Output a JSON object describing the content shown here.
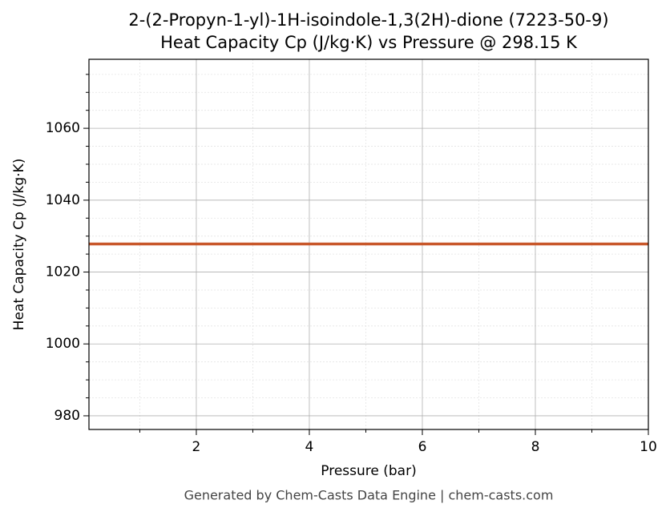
{
  "chart_data": {
    "type": "line",
    "title": "2-(2-Propyn-1-yl)-1H-isoindole-1,3(2H)-dione (7223-50-9)",
    "subtitle": "Heat Capacity Cp (J/kg·K) vs Pressure @ 298.15 K",
    "x_label": "Pressure (bar)",
    "y_label": "Heat Capacity Cp (J/kg·K)",
    "caption": "Generated by Chem-Casts Data Engine | chem-casts.com",
    "x": [
      0.1,
      10
    ],
    "series": [
      {
        "name": "Cp",
        "color": "#c8572a",
        "values": [
          1027.8,
          1027.8
        ]
      }
    ],
    "xlim": [
      0.1,
      10
    ],
    "xticks": [
      2,
      4,
      6,
      8,
      10
    ],
    "ylim": [
      976.2,
      1079.2
    ],
    "yticks": [
      980,
      1000,
      1020,
      1040,
      1060
    ],
    "x_minor_ticks": [
      1,
      3,
      5,
      7,
      9
    ],
    "y_minor_ticks": [
      985,
      990,
      995,
      1005,
      1010,
      1015,
      1025,
      1030,
      1035,
      1045,
      1050,
      1055,
      1065,
      1070,
      1075
    ],
    "grid": true
  }
}
